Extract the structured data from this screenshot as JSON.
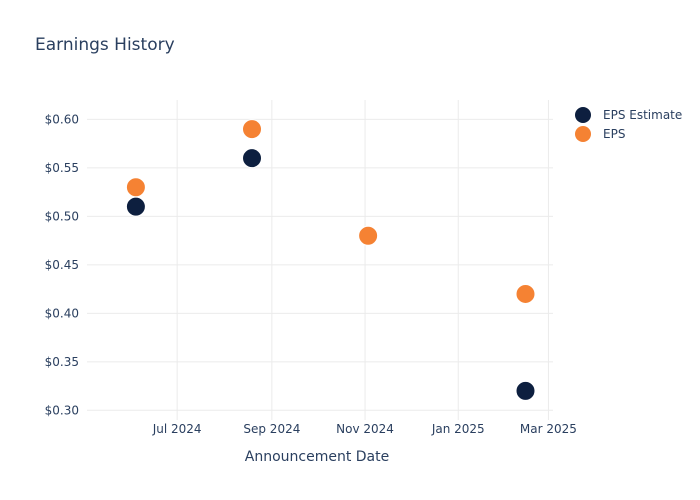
{
  "chart_data": {
    "type": "scatter",
    "title": "Earnings History",
    "xlabel": "Announcement Date",
    "ylabel": "",
    "x_ticks": [
      {
        "date": "2024-07-01",
        "label": "Jul 2024"
      },
      {
        "date": "2024-09-01",
        "label": "Sep 2024"
      },
      {
        "date": "2024-11-01",
        "label": "Nov 2024"
      },
      {
        "date": "2025-01-01",
        "label": "Jan 2025"
      },
      {
        "date": "2025-03-01",
        "label": "Mar 2025"
      }
    ],
    "xlim": [
      "2024-05-03",
      "2025-03-04"
    ],
    "y_ticks": [
      {
        "value": 0.3,
        "label": "$0.30"
      },
      {
        "value": 0.35,
        "label": "$0.35"
      },
      {
        "value": 0.4,
        "label": "$0.40"
      },
      {
        "value": 0.45,
        "label": "$0.45"
      },
      {
        "value": 0.5,
        "label": "$0.50"
      },
      {
        "value": 0.55,
        "label": "$0.55"
      },
      {
        "value": 0.6,
        "label": "$0.60"
      }
    ],
    "ylim": [
      0.29,
      0.62
    ],
    "grid": true,
    "legend_position": "top-right",
    "series": [
      {
        "name": "EPS Estimate",
        "color": "#0d1f3f",
        "points": [
          {
            "x": "2024-06-04",
            "y": 0.51
          },
          {
            "x": "2024-08-19",
            "y": 0.56
          },
          {
            "x": "2024-11-03",
            "y": 0.48
          },
          {
            "x": "2025-02-14",
            "y": 0.32
          }
        ]
      },
      {
        "name": "EPS",
        "color": "#f58233",
        "points": [
          {
            "x": "2024-06-04",
            "y": 0.53
          },
          {
            "x": "2024-08-19",
            "y": 0.59
          },
          {
            "x": "2024-11-03",
            "y": 0.48
          },
          {
            "x": "2025-02-14",
            "y": 0.42
          }
        ]
      }
    ]
  }
}
